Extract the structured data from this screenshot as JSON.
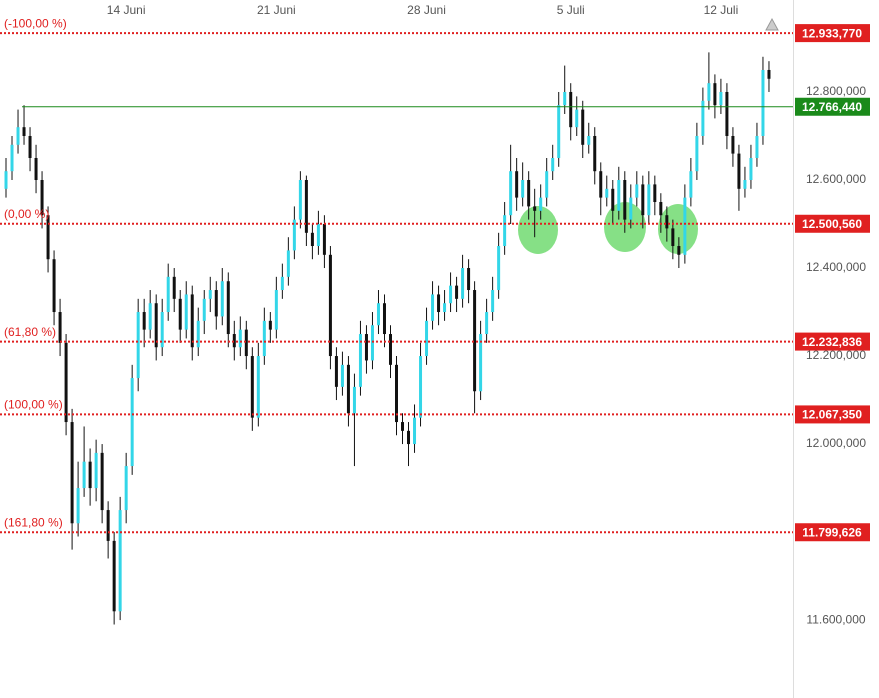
{
  "chart_data": {
    "type": "candlestick",
    "x": [
      0,
      1,
      2,
      3,
      4,
      5,
      6,
      7,
      8,
      9,
      10,
      11,
      12,
      13,
      14,
      15,
      16,
      17,
      18,
      19,
      20,
      21,
      22,
      23,
      24,
      25,
      26,
      27,
      28,
      29,
      30,
      31,
      32,
      33,
      34,
      35,
      36,
      37,
      38,
      39,
      40,
      41,
      42,
      43,
      44,
      45,
      46,
      47,
      48,
      49,
      50,
      51,
      52,
      53,
      54,
      55,
      56,
      57,
      58,
      59,
      60,
      61,
      62,
      63,
      64,
      65,
      66,
      67,
      68,
      69,
      70,
      71,
      72,
      73,
      74,
      75,
      76,
      77,
      78,
      79,
      80,
      81,
      82,
      83,
      84,
      85,
      86,
      87,
      88,
      89,
      90,
      91,
      92,
      93,
      94,
      95,
      96,
      97,
      98,
      99,
      100,
      101,
      102,
      103,
      104,
      105,
      106,
      107,
      108,
      109,
      110,
      111,
      112,
      113,
      114,
      115,
      116,
      117,
      118,
      119,
      120,
      121,
      122,
      123,
      124,
      125,
      126,
      127
    ],
    "open": [
      12580,
      12620,
      12680,
      12720,
      12700,
      12650,
      12600,
      12520,
      12420,
      12300,
      12230,
      12050,
      11820,
      11900,
      11960,
      11900,
      11980,
      11850,
      11780,
      11620,
      11850,
      11950,
      12150,
      12300,
      12260,
      12320,
      12220,
      12300,
      12380,
      12330,
      12260,
      12340,
      12220,
      12280,
      12330,
      12350,
      12290,
      12370,
      12250,
      12220,
      12260,
      12200,
      12060,
      12200,
      12280,
      12260,
      12350,
      12380,
      12440,
      12510,
      12600,
      12480,
      12450,
      12500,
      12430,
      12200,
      12130,
      12180,
      12070,
      12130,
      12250,
      12190,
      12270,
      12320,
      12250,
      12180,
      12050,
      12030,
      12000,
      12060,
      12200,
      12280,
      12340,
      12300,
      12320,
      12360,
      12330,
      12400,
      12350,
      12120,
      12250,
      12300,
      12350,
      12450,
      12520,
      12620,
      12560,
      12600,
      12540,
      12530,
      12560,
      12620,
      12650,
      12770,
      12800,
      12720,
      12760,
      12680,
      12700,
      12620,
      12560,
      12580,
      12530,
      12600,
      12510,
      12560,
      12590,
      12520,
      12590,
      12550,
      12520,
      12490,
      12450,
      12430,
      12560,
      12620,
      12700,
      12780,
      12820,
      12770,
      12800,
      12700,
      12660,
      12580,
      12600,
      12650,
      12700,
      12850
    ],
    "high": [
      12650,
      12700,
      12760,
      12770,
      12720,
      12680,
      12620,
      12540,
      12440,
      12330,
      12250,
      12080,
      11960,
      12040,
      11990,
      12010,
      12000,
      11870,
      11800,
      11880,
      11980,
      12180,
      12330,
      12330,
      12350,
      12340,
      12330,
      12410,
      12400,
      12350,
      12370,
      12360,
      12310,
      12350,
      12380,
      12370,
      12400,
      12390,
      12280,
      12290,
      12280,
      12220,
      12230,
      12310,
      12300,
      12380,
      12410,
      12470,
      12540,
      12620,
      12610,
      12500,
      12530,
      12520,
      12450,
      12220,
      12210,
      12200,
      12160,
      12280,
      12270,
      12300,
      12350,
      12340,
      12270,
      12200,
      12070,
      12050,
      12090,
      12230,
      12310,
      12370,
      12360,
      12350,
      12390,
      12380,
      12430,
      12420,
      12370,
      12280,
      12330,
      12380,
      12480,
      12550,
      12680,
      12650,
      12640,
      12620,
      12580,
      12590,
      12650,
      12680,
      12800,
      12860,
      12820,
      12790,
      12780,
      12730,
      12720,
      12640,
      12610,
      12600,
      12630,
      12620,
      12590,
      12620,
      12610,
      12620,
      12610,
      12570,
      12540,
      12510,
      12470,
      12590,
      12650,
      12730,
      12810,
      12890,
      12840,
      12830,
      12820,
      12720,
      12680,
      12630,
      12680,
      12730,
      12880,
      12870
    ],
    "low": [
      12560,
      12600,
      12660,
      12680,
      12620,
      12570,
      12490,
      12390,
      12270,
      12200,
      12020,
      11760,
      11790,
      11880,
      11860,
      11870,
      11820,
      11740,
      11590,
      11600,
      11820,
      11930,
      12120,
      12220,
      12240,
      12190,
      12200,
      12280,
      12300,
      12230,
      12240,
      12190,
      12200,
      12250,
      12300,
      12260,
      12270,
      12220,
      12190,
      12200,
      12170,
      12030,
      12040,
      12180,
      12230,
      12240,
      12330,
      12360,
      12420,
      12490,
      12450,
      12420,
      12430,
      12400,
      12170,
      12100,
      12110,
      12040,
      11950,
      12110,
      12160,
      12170,
      12250,
      12220,
      12150,
      12020,
      12000,
      11950,
      11980,
      12040,
      12180,
      12260,
      12270,
      12280,
      12300,
      12300,
      12310,
      12320,
      12070,
      12100,
      12230,
      12280,
      12330,
      12430,
      12500,
      12530,
      12540,
      12510,
      12470,
      12510,
      12540,
      12600,
      12630,
      12750,
      12690,
      12700,
      12650,
      12660,
      12590,
      12520,
      12540,
      12500,
      12510,
      12480,
      12490,
      12540,
      12490,
      12500,
      12520,
      12480,
      12460,
      12420,
      12400,
      12410,
      12540,
      12600,
      12680,
      12760,
      12740,
      12750,
      12670,
      12630,
      12530,
      12560,
      12580,
      12630,
      12680,
      12800
    ],
    "close": [
      12620,
      12680,
      12720,
      12700,
      12650,
      12600,
      12520,
      12420,
      12300,
      12230,
      12050,
      11820,
      11900,
      11960,
      11900,
      11980,
      11850,
      11780,
      11620,
      11850,
      11950,
      12150,
      12300,
      12260,
      12320,
      12220,
      12300,
      12380,
      12330,
      12260,
      12340,
      12220,
      12280,
      12330,
      12350,
      12290,
      12370,
      12250,
      12220,
      12260,
      12200,
      12060,
      12200,
      12280,
      12260,
      12350,
      12380,
      12440,
      12510,
      12600,
      12480,
      12450,
      12500,
      12430,
      12200,
      12130,
      12180,
      12070,
      12130,
      12250,
      12190,
      12270,
      12320,
      12250,
      12180,
      12050,
      12030,
      12000,
      12060,
      12200,
      12280,
      12340,
      12300,
      12320,
      12360,
      12330,
      12400,
      12350,
      12120,
      12250,
      12300,
      12350,
      12450,
      12520,
      12620,
      12560,
      12600,
      12540,
      12530,
      12560,
      12620,
      12650,
      12770,
      12800,
      12720,
      12760,
      12680,
      12700,
      12620,
      12560,
      12580,
      12530,
      12600,
      12510,
      12560,
      12590,
      12520,
      12590,
      12550,
      12520,
      12490,
      12450,
      12430,
      12560,
      12620,
      12700,
      12780,
      12820,
      12770,
      12800,
      12700,
      12660,
      12580,
      12600,
      12650,
      12700,
      12850,
      12830
    ],
    "up_color": "#33d6e8",
    "down_color": "#111111",
    "xlim": [
      -1,
      131
    ],
    "xticks": [
      {
        "value": 20,
        "label": "14 Juni"
      },
      {
        "value": 45,
        "label": "21 Juni"
      },
      {
        "value": 70,
        "label": "28 Juni"
      },
      {
        "value": 94,
        "label": "5 Juli"
      },
      {
        "value": 119,
        "label": "12 Juli"
      }
    ],
    "ylim": [
      11423,
      13009
    ],
    "yticks": [
      {
        "value": 12800,
        "label": "12.800,000"
      },
      {
        "value": 12600,
        "label": "12.600,000"
      },
      {
        "value": 12400,
        "label": "12.400,000"
      },
      {
        "value": 12200,
        "label": "12.200,000"
      },
      {
        "value": 12000,
        "label": "12.000,000"
      },
      {
        "value": 11600,
        "label": "11.600,000"
      }
    ],
    "levels": [
      {
        "value": 12933.77,
        "label": "12.933,770",
        "fib_label": "(-100,00 %)",
        "color": "#e02020",
        "style": "dotted"
      },
      {
        "value": 12766.44,
        "label": "12.766,440",
        "color": "#1a8a1a",
        "style": "solid"
      },
      {
        "value": 12500.56,
        "label": "12.500,560",
        "fib_label": "(0,00 %)",
        "color": "#e02020",
        "style": "dotted"
      },
      {
        "value": 12232.836,
        "label": "12.232,836",
        "fib_label": "(61,80 %)",
        "color": "#e02020",
        "style": "dotted"
      },
      {
        "value": 12067.35,
        "label": "12.067,350",
        "fib_label": "(100,00 %)",
        "color": "#e02020",
        "style": "dotted"
      },
      {
        "value": 11799.626,
        "label": "11.799,626",
        "fib_label": "(161,80 %)",
        "color": "#e02020",
        "style": "dotted"
      }
    ]
  }
}
